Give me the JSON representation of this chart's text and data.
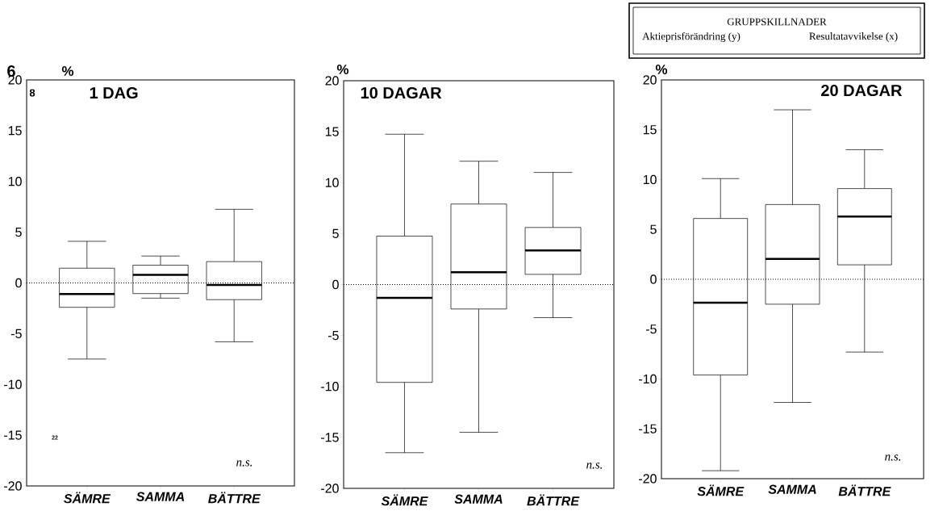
{
  "chart_data": [
    {
      "type": "box",
      "title": "1 DAG",
      "ylabel": "%",
      "color": "#000000",
      "categories": [
        "SÄMRE",
        "SAMMA",
        "BÄTTRE"
      ],
      "boxes": [
        {
          "low": -7.5,
          "q1": -2.4,
          "median": -1.1,
          "q3": 1.45,
          "high": 4.1
        },
        {
          "low": -1.5,
          "q1": -1.05,
          "median": 0.8,
          "q3": 1.75,
          "high": 2.65
        },
        {
          "low": -5.8,
          "q1": -1.65,
          "median": -0.2,
          "q3": 2.1,
          "high": 7.25
        }
      ],
      "ylim": [
        -20,
        20
      ],
      "yticks": [
        -20,
        -15,
        -10,
        -5,
        0,
        5,
        10,
        15,
        20
      ],
      "ref_lines": [
        {
          "axis": "y",
          "value": 0,
          "line_style": "dotted",
          "color": "#000000"
        }
      ],
      "annotations": [
        "6",
        "8",
        "22",
        "n.s."
      ]
    },
    {
      "type": "box",
      "title": "10 DAGAR",
      "ylabel": "%",
      "color": "#000000",
      "categories": [
        "SÄMRE",
        "SAMMA",
        "BÄTTRE"
      ],
      "boxes": [
        {
          "low": -16.5,
          "q1": -9.6,
          "median": -1.3,
          "q3": 4.75,
          "high": 14.75
        },
        {
          "low": -14.5,
          "q1": -2.4,
          "median": 1.2,
          "q3": 7.9,
          "high": 12.1
        },
        {
          "low": -3.25,
          "q1": 1.0,
          "median": 3.35,
          "q3": 5.6,
          "high": 11.0
        }
      ],
      "ylim": [
        -20,
        20
      ],
      "yticks": [
        -20,
        -15,
        -10,
        -5,
        0,
        5,
        10,
        15,
        20
      ],
      "ref_lines": [
        {
          "axis": "y",
          "value": 0,
          "line_style": "dotted",
          "color": "#000000"
        }
      ],
      "annotations": [
        "n.s."
      ]
    },
    {
      "type": "box",
      "title": "20 DAGAR",
      "ylabel": "%",
      "color": "#000000",
      "categories": [
        "SÄMRE",
        "SAMMA",
        "BÄTTRE"
      ],
      "boxes": [
        {
          "low": -19.2,
          "q1": -9.6,
          "median": -2.35,
          "q3": 6.1,
          "high": 10.1
        },
        {
          "low": -12.35,
          "q1": -2.5,
          "median": 2.05,
          "q3": 7.5,
          "high": 17.0
        },
        {
          "low": -7.3,
          "q1": 1.45,
          "median": 6.3,
          "q3": 9.1,
          "high": 13.0
        }
      ],
      "ylim": [
        -20,
        20
      ],
      "yticks": [
        -20,
        -15,
        -10,
        -5,
        0,
        5,
        10,
        15,
        20
      ],
      "ref_lines": [
        {
          "axis": "y",
          "value": 0,
          "line_style": "dotted",
          "color": "#000000"
        }
      ],
      "annotations": [
        "n.s."
      ]
    },
    {
      "type": "other",
      "title": "GRUPPSKILLNADER",
      "annotations": [
        "Aktieprisförändring (y)",
        "Resultatavvikelse (x)"
      ]
    }
  ]
}
